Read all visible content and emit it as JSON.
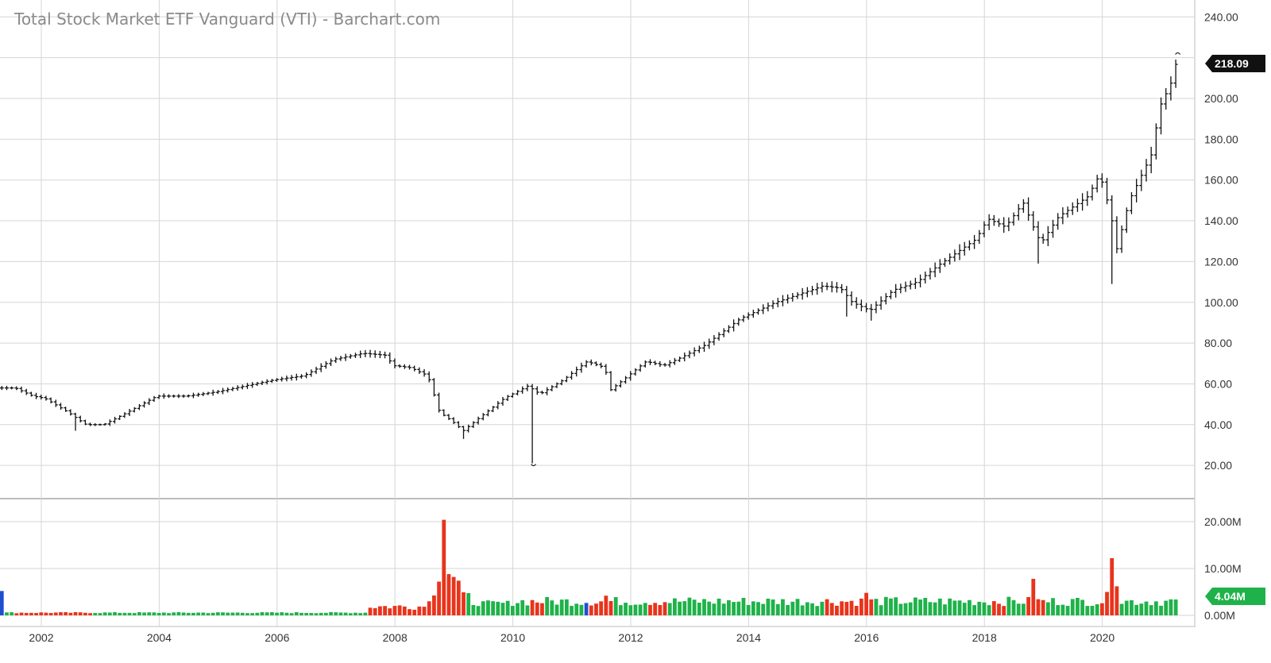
{
  "title": "Total Stock Market ETF Vanguard (VTI) - Barchart.com",
  "colors": {
    "up": "#1fb24a",
    "down": "#e8341c",
    "neutral": "#1f4fd1",
    "price": "#111111",
    "grid": "#d6d6d6",
    "badge_price": "#111111",
    "badge_volume": "#1fb24a"
  },
  "chart_data": [
    {
      "type": "ohlc",
      "title": "Total Stock Market ETF Vanguard (VTI) - Barchart.com",
      "interval": "monthly",
      "x_ticks": [
        "2002",
        "2004",
        "2006",
        "2008",
        "2010",
        "2012",
        "2014",
        "2016",
        "2018",
        "2020"
      ],
      "y_ticks": [
        "20.00",
        "40.00",
        "60.00",
        "80.00",
        "100.00",
        "120.00",
        "140.00",
        "160.00",
        "180.00",
        "200.00",
        "240.00"
      ],
      "ylim": [
        0,
        240
      ],
      "last_value_label": "218.09",
      "last_value": 218.09,
      "anchors": [
        [
          2001.6,
          58
        ],
        [
          2001.9,
          54
        ],
        [
          2002.1,
          53
        ],
        [
          2002.5,
          46
        ],
        [
          2002.8,
          40
        ],
        [
          2003.1,
          40
        ],
        [
          2003.5,
          46
        ],
        [
          2004.0,
          54
        ],
        [
          2004.5,
          54
        ],
        [
          2005.0,
          56
        ],
        [
          2005.5,
          59
        ],
        [
          2006.0,
          62
        ],
        [
          2006.5,
          64
        ],
        [
          2007.0,
          72
        ],
        [
          2007.5,
          75
        ],
        [
          2007.9,
          74
        ],
        [
          2008.0,
          69
        ],
        [
          2008.3,
          68
        ],
        [
          2008.6,
          64
        ],
        [
          2008.8,
          46
        ],
        [
          2009.0,
          42
        ],
        [
          2009.2,
          37
        ],
        [
          2009.5,
          44
        ],
        [
          2009.9,
          53
        ],
        [
          2010.3,
          59
        ],
        [
          2010.5,
          55
        ],
        [
          2010.9,
          62
        ],
        [
          2011.3,
          71
        ],
        [
          2011.6,
          68
        ],
        [
          2011.7,
          57
        ],
        [
          2012.0,
          64
        ],
        [
          2012.3,
          71
        ],
        [
          2012.6,
          69
        ],
        [
          2012.9,
          73
        ],
        [
          2013.3,
          79
        ],
        [
          2013.9,
          92
        ],
        [
          2014.5,
          100
        ],
        [
          2014.9,
          104
        ],
        [
          2015.3,
          108
        ],
        [
          2015.6,
          107
        ],
        [
          2015.8,
          100
        ],
        [
          2016.1,
          96
        ],
        [
          2016.5,
          106
        ],
        [
          2016.9,
          110
        ],
        [
          2017.3,
          119
        ],
        [
          2017.9,
          131
        ],
        [
          2018.1,
          141
        ],
        [
          2018.4,
          137
        ],
        [
          2018.7,
          149
        ],
        [
          2018.9,
          135
        ],
        [
          2019.0,
          129
        ],
        [
          2019.3,
          142
        ],
        [
          2019.8,
          152
        ],
        [
          2020.0,
          163
        ],
        [
          2020.2,
          142
        ],
        [
          2020.25,
          122
        ],
        [
          2020.5,
          150
        ],
        [
          2020.8,
          168
        ],
        [
          2020.9,
          174
        ],
        [
          2021.0,
          195
        ],
        [
          2021.2,
          207
        ],
        [
          2021.3,
          218
        ]
      ],
      "extremes": [
        [
          2010.35,
          21
        ],
        [
          2002.55,
          37
        ],
        [
          2009.17,
          33
        ],
        [
          2020.2,
          109
        ],
        [
          2018.95,
          119
        ],
        [
          2015.65,
          93
        ],
        [
          2016.05,
          91
        ]
      ],
      "volume_ylim": [
        0,
        22
      ],
      "volume_y_ticks": [
        "0.00M",
        "10.00M",
        "20.00M"
      ],
      "last_volume_label": "4.04M",
      "volume_peaks": [
        [
          2008.83,
          20.4
        ],
        [
          2008.92,
          8.8
        ],
        [
          2009.0,
          8.2
        ],
        [
          2009.08,
          7.4
        ],
        [
          2008.75,
          7.2
        ],
        [
          2020.17,
          12.2
        ],
        [
          2020.25,
          6.2
        ],
        [
          2018.83,
          7.8
        ],
        [
          2020.08,
          5.0
        ],
        [
          2016.0,
          4.8
        ],
        [
          2011.58,
          4.2
        ]
      ]
    }
  ]
}
